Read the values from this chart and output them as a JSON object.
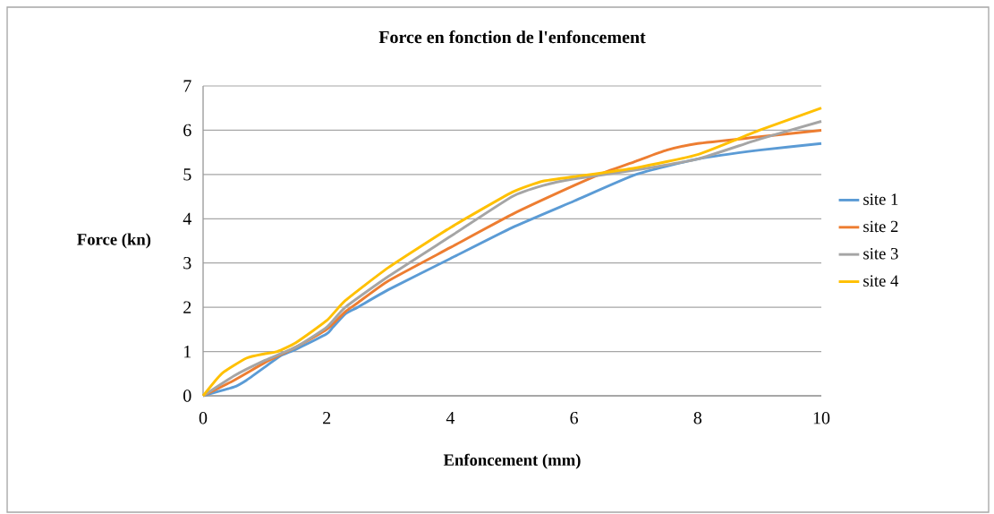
{
  "chart_data": {
    "type": "line",
    "title": "Force en fonction de l'enfoncement",
    "xlabel": "Enfoncement (mm)",
    "ylabel": "Force (kn)",
    "xlim": [
      0,
      10
    ],
    "ylim": [
      0,
      7
    ],
    "xticks": [
      0,
      2,
      4,
      6,
      8,
      10
    ],
    "yticks": [
      0,
      1,
      2,
      3,
      4,
      5,
      6,
      7
    ],
    "grid": "y",
    "legend": "right",
    "marker": "none",
    "line_style": "solid",
    "series": [
      {
        "name": "site 1",
        "color": "#5b9bd5",
        "x": [
          0,
          0.5,
          0.7,
          1,
          1.25,
          1.5,
          2,
          2.1,
          2.3,
          2.5,
          3,
          4,
          5,
          6,
          7,
          8,
          9,
          10
        ],
        "values": [
          0,
          0.2,
          0.35,
          0.65,
          0.9,
          1.05,
          1.4,
          1.55,
          1.85,
          2.0,
          2.4,
          3.1,
          3.8,
          4.4,
          5.0,
          5.35,
          5.55,
          5.7
        ]
      },
      {
        "name": "site 2",
        "color": "#ed7d31",
        "x": [
          0,
          0.5,
          1,
          1.5,
          2,
          2.3,
          2.5,
          3,
          4,
          5,
          6,
          6.5,
          7,
          7.5,
          8,
          9,
          10
        ],
        "values": [
          0,
          0.35,
          0.75,
          1.1,
          1.5,
          1.9,
          2.1,
          2.6,
          3.35,
          4.1,
          4.75,
          5.05,
          5.3,
          5.55,
          5.7,
          5.85,
          6.0
        ]
      },
      {
        "name": "site 3",
        "color": "#a5a5a5",
        "x": [
          0,
          0.5,
          1,
          1.5,
          2,
          2.3,
          3,
          4,
          5,
          5.5,
          6,
          7,
          8,
          9,
          10
        ],
        "values": [
          0,
          0.45,
          0.8,
          1.1,
          1.55,
          2.0,
          2.7,
          3.6,
          4.5,
          4.75,
          4.9,
          5.1,
          5.35,
          5.8,
          6.2
        ]
      },
      {
        "name": "site 4",
        "color": "#ffc000",
        "x": [
          0,
          0.3,
          0.7,
          1,
          1.2,
          1.5,
          2,
          2.3,
          3,
          4,
          5,
          5.5,
          6,
          7,
          8,
          9,
          10
        ],
        "values": [
          0,
          0.5,
          0.85,
          0.95,
          1.0,
          1.2,
          1.7,
          2.15,
          2.9,
          3.8,
          4.6,
          4.85,
          4.95,
          5.15,
          5.45,
          6.0,
          6.5
        ]
      }
    ]
  }
}
